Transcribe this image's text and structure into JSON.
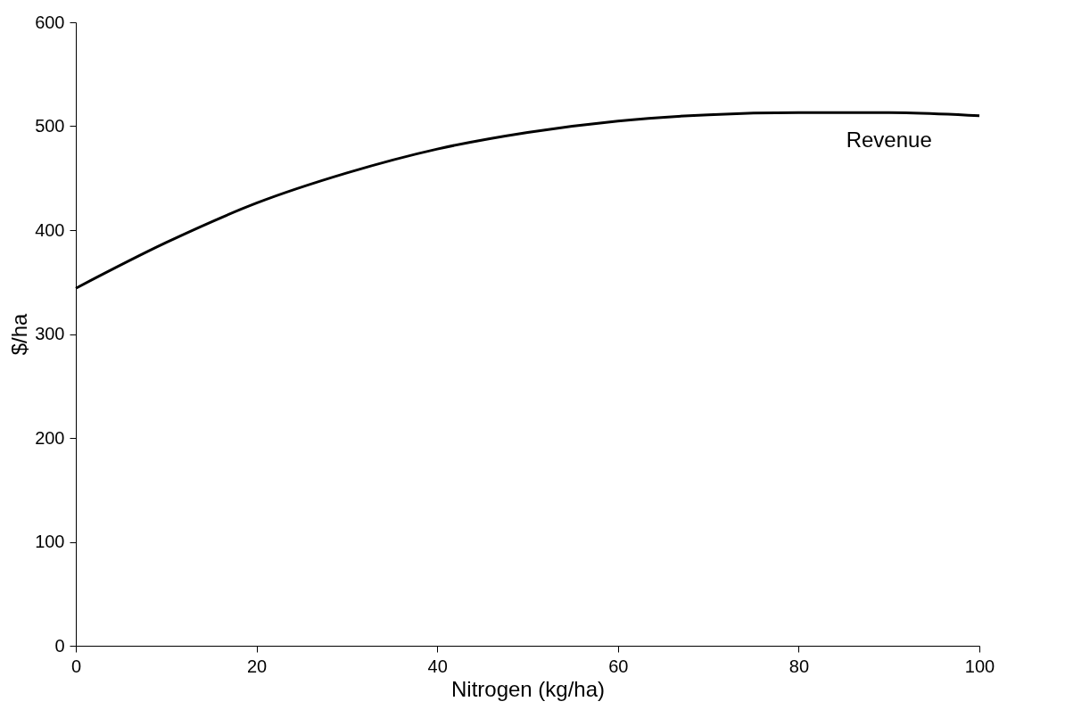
{
  "chart_data": {
    "type": "line",
    "xlabel": "Nitrogen (kg/ha)",
    "ylabel": "$/ha",
    "x": [
      0,
      10,
      20,
      30,
      40,
      50,
      60,
      70,
      80,
      90,
      100
    ],
    "series": [
      {
        "name": "Revenue",
        "color": "#000000",
        "values": [
          344,
          388,
          426,
          455,
          478,
          494,
          505,
          511,
          513,
          513,
          510
        ]
      }
    ],
    "xlim": [
      0,
      100
    ],
    "xticks": [
      0,
      20,
      40,
      60,
      80,
      100
    ],
    "ylim": [
      0,
      600
    ],
    "yticks": [
      0,
      100,
      200,
      300,
      400,
      500,
      600
    ],
    "grid": false,
    "marker": "none",
    "line_style": "solid"
  }
}
